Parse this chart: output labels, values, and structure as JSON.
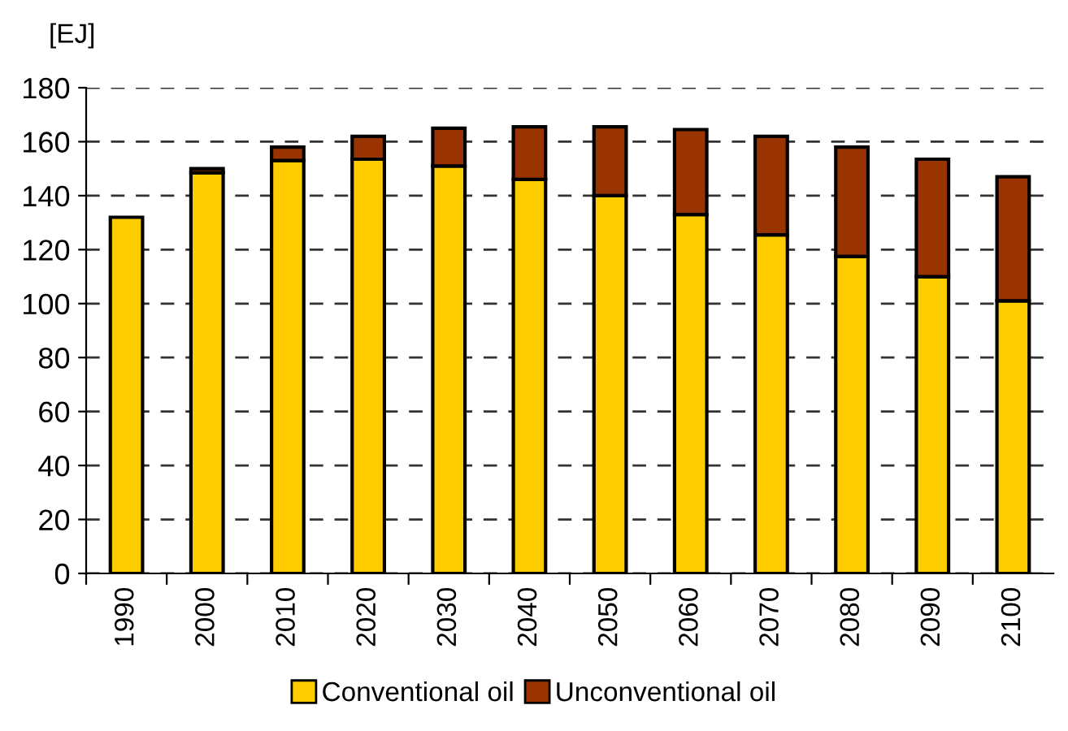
{
  "chart_data": {
    "type": "bar",
    "stacked": true,
    "ylabel": "[EJ]",
    "categories": [
      "1990",
      "2000",
      "2010",
      "2020",
      "2030",
      "2040",
      "2050",
      "2060",
      "2070",
      "2080",
      "2090",
      "2100"
    ],
    "series": [
      {
        "name": "Conventional oil",
        "color": "#ffcc00",
        "values": [
          132,
          148.5,
          153,
          153.5,
          151,
          146,
          140,
          133,
          125.5,
          117.5,
          110,
          101
        ]
      },
      {
        "name": "Unconventional oil",
        "color": "#993300",
        "values": [
          null,
          1.5,
          5,
          8.5,
          14,
          19.5,
          25.5,
          31.5,
          36.5,
          40.5,
          43.5,
          46
        ]
      }
    ],
    "ylim": [
      0,
      180
    ],
    "yticks": [
      0,
      20,
      40,
      60,
      80,
      100,
      120,
      140,
      160,
      180
    ],
    "grid": "y",
    "legend": "bottom"
  }
}
